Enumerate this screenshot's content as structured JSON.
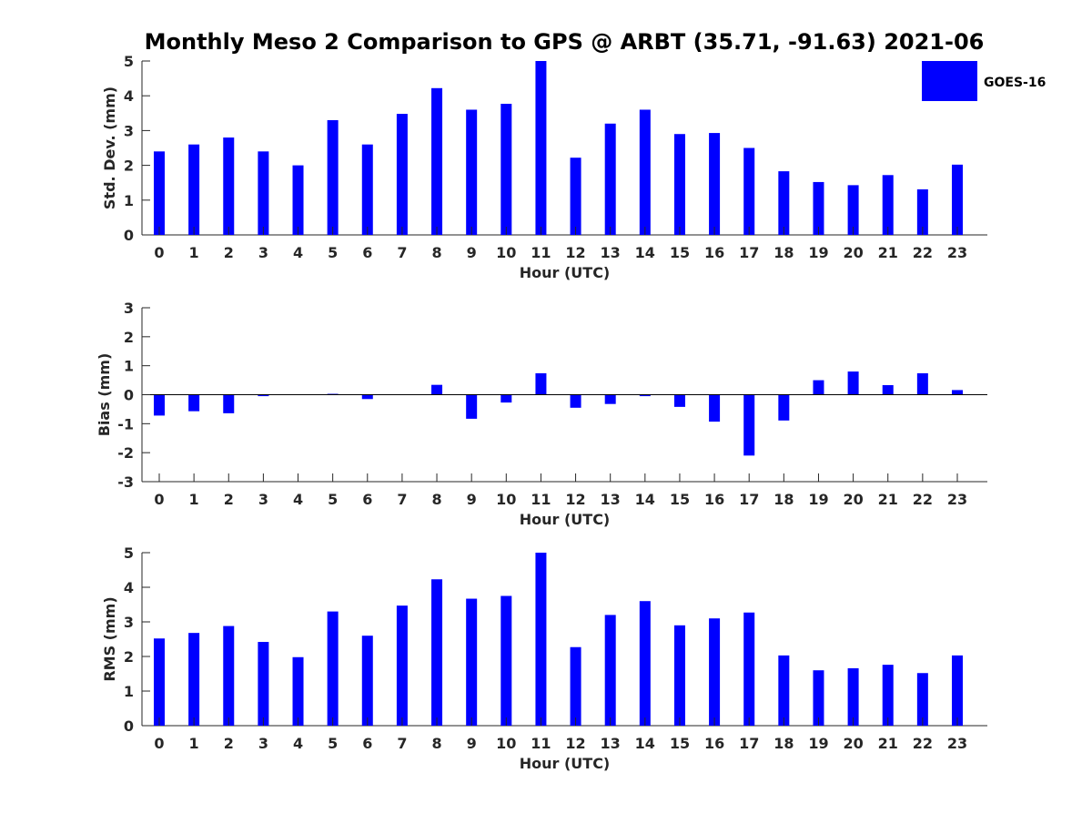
{
  "figure": {
    "title": "Monthly Meso 2 Comparison to GPS @ ARBT (35.71, -91.63) 2021-06",
    "legend": {
      "label": "GOES-16",
      "color": "#0000ff",
      "placement": "top-right"
    }
  },
  "chart_data": [
    {
      "type": "bar",
      "xlabel": "Hour (UTC)",
      "ylabel": "Std. Dev. (mm)",
      "ylim": [
        0,
        5
      ],
      "yticks": [
        0,
        1,
        2,
        3,
        4,
        5
      ],
      "categories": [
        "0",
        "1",
        "2",
        "3",
        "4",
        "5",
        "6",
        "7",
        "8",
        "9",
        "10",
        "11",
        "12",
        "13",
        "14",
        "15",
        "16",
        "17",
        "18",
        "19",
        "20",
        "21",
        "22",
        "23"
      ],
      "series": [
        {
          "name": "GOES-16",
          "color": "#0000ff",
          "values": [
            2.4,
            2.6,
            2.8,
            2.4,
            2.0,
            3.3,
            2.6,
            3.48,
            4.22,
            3.6,
            3.77,
            5.0,
            2.22,
            3.2,
            3.6,
            2.9,
            2.93,
            2.5,
            1.83,
            1.52,
            1.43,
            1.72,
            1.31,
            2.02
          ]
        }
      ]
    },
    {
      "type": "bar",
      "xlabel": "Hour (UTC)",
      "ylabel": "Bias (mm)",
      "ylim": [
        -3,
        3
      ],
      "yticks": [
        -3,
        -2,
        -1,
        0,
        1,
        2,
        3
      ],
      "categories": [
        "0",
        "1",
        "2",
        "3",
        "4",
        "5",
        "6",
        "7",
        "8",
        "9",
        "10",
        "11",
        "12",
        "13",
        "14",
        "15",
        "16",
        "17",
        "18",
        "19",
        "20",
        "21",
        "22",
        "23"
      ],
      "series": [
        {
          "name": "GOES-16",
          "color": "#0000ff",
          "values": [
            -0.72,
            -0.57,
            -0.64,
            -0.05,
            0.0,
            0.03,
            -0.15,
            0.0,
            0.34,
            -0.83,
            -0.27,
            0.74,
            -0.45,
            -0.32,
            -0.05,
            -0.42,
            -0.93,
            -2.1,
            -0.89,
            0.5,
            0.8,
            0.33,
            0.74,
            0.16
          ]
        }
      ]
    },
    {
      "type": "bar",
      "xlabel": "Hour (UTC)",
      "ylabel": "RMS (mm)",
      "ylim": [
        0,
        5
      ],
      "yticks": [
        0,
        1,
        2,
        3,
        4,
        5
      ],
      "categories": [
        "0",
        "1",
        "2",
        "3",
        "4",
        "5",
        "6",
        "7",
        "8",
        "9",
        "10",
        "11",
        "12",
        "13",
        "14",
        "15",
        "16",
        "17",
        "18",
        "19",
        "20",
        "21",
        "22",
        "23"
      ],
      "series": [
        {
          "name": "GOES-16",
          "color": "#0000ff",
          "values": [
            2.52,
            2.68,
            2.88,
            2.42,
            1.98,
            3.3,
            2.6,
            3.47,
            4.23,
            3.67,
            3.75,
            5.0,
            2.27,
            3.2,
            3.6,
            2.9,
            3.1,
            3.27,
            2.03,
            1.6,
            1.66,
            1.76,
            1.52,
            2.03
          ]
        }
      ]
    }
  ]
}
